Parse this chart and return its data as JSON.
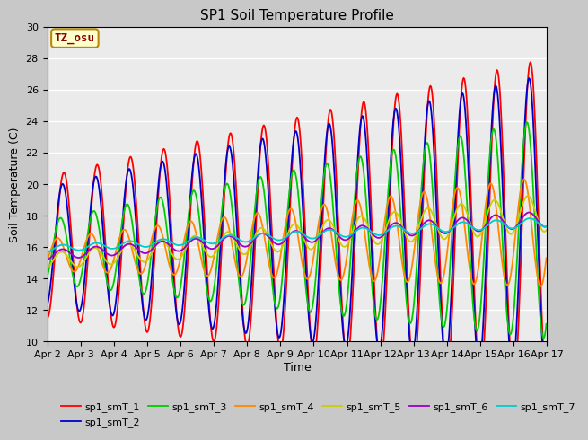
{
  "title": "SP1 Soil Temperature Profile",
  "ylabel": "Soil Temperature (C)",
  "xlabel": "Time",
  "ylim": [
    10,
    30
  ],
  "annotation": "TZ_osu",
  "series_labels": [
    "sp1_smT_1",
    "sp1_smT_2",
    "sp1_smT_3",
    "sp1_smT_4",
    "sp1_smT_5",
    "sp1_smT_6",
    "sp1_smT_7"
  ],
  "series_colors": [
    "#ff0000",
    "#0000cc",
    "#00cc00",
    "#ff8800",
    "#cccc00",
    "#9900cc",
    "#00cccc"
  ],
  "xtick_labels": [
    "Apr 2",
    "Apr 3",
    "Apr 4",
    "Apr 5",
    "Apr 6",
    "Apr 7",
    "Apr 8",
    "Apr 9",
    "Apr 10",
    "Apr 11",
    "Apr 12",
    "Apr 13",
    "Apr 14",
    "Apr 15",
    "Apr 16",
    "Apr 17"
  ],
  "n_days": 15,
  "pts_per_day": 48
}
